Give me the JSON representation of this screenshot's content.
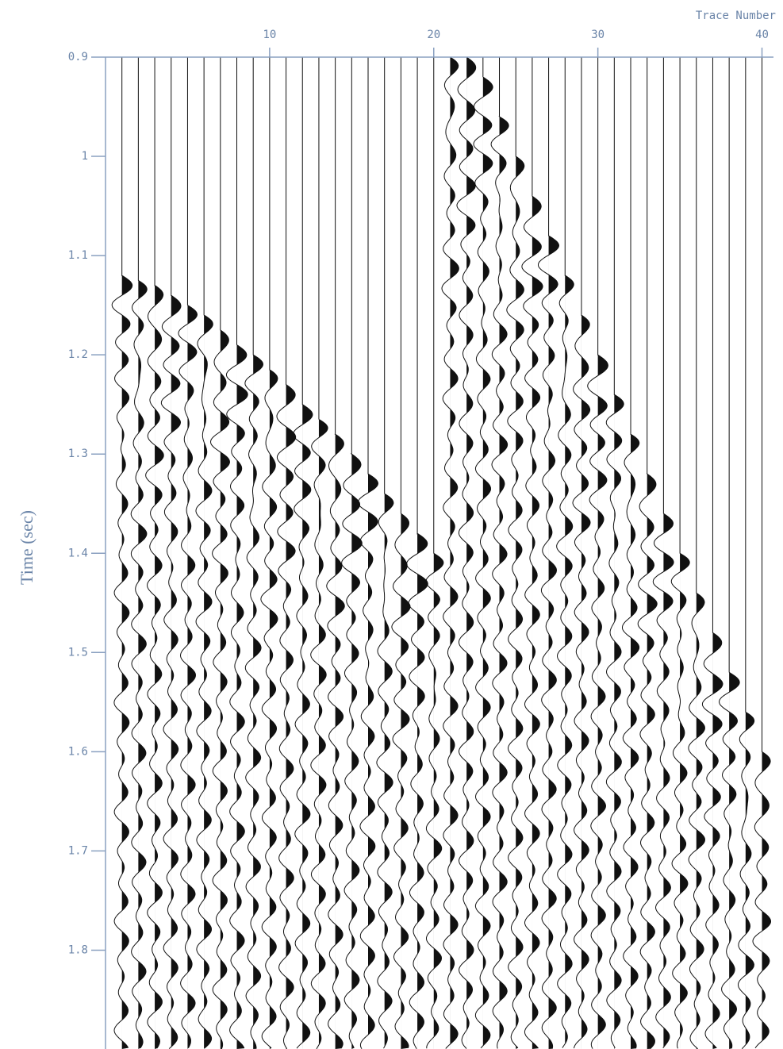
{
  "chart_data": {
    "type": "wiggle",
    "x_label": "Trace Number",
    "y_label": "Time (sec)",
    "traces": [
      1,
      2,
      3,
      4,
      5,
      6,
      7,
      8,
      9,
      10,
      11,
      12,
      13,
      14,
      15,
      16,
      17,
      18,
      19,
      20,
      21,
      22,
      23,
      24,
      25,
      26,
      27,
      28,
      29,
      30,
      31,
      32,
      33,
      34,
      35,
      36,
      37,
      38,
      39,
      40
    ],
    "first_break": [
      1.12,
      1.125,
      1.13,
      1.14,
      1.15,
      1.16,
      1.175,
      1.19,
      1.2,
      1.215,
      1.23,
      1.25,
      1.265,
      1.28,
      1.3,
      1.32,
      1.34,
      1.36,
      1.38,
      1.4,
      0.9,
      0.9,
      0.92,
      0.96,
      1.0,
      1.04,
      1.08,
      1.12,
      1.16,
      1.2,
      1.24,
      1.28,
      1.32,
      1.36,
      1.4,
      1.44,
      1.48,
      1.52,
      1.56,
      1.6
    ],
    "xlim": [
      0,
      40.7
    ],
    "xticks": [
      10,
      20,
      30,
      40
    ],
    "ylim": [
      0.9,
      1.89
    ],
    "yticks": [
      0.9,
      1,
      1.1,
      1.2,
      1.3,
      1.4,
      1.5,
      1.6,
      1.7,
      1.8
    ],
    "y_inverted": true,
    "color": "#111111"
  }
}
